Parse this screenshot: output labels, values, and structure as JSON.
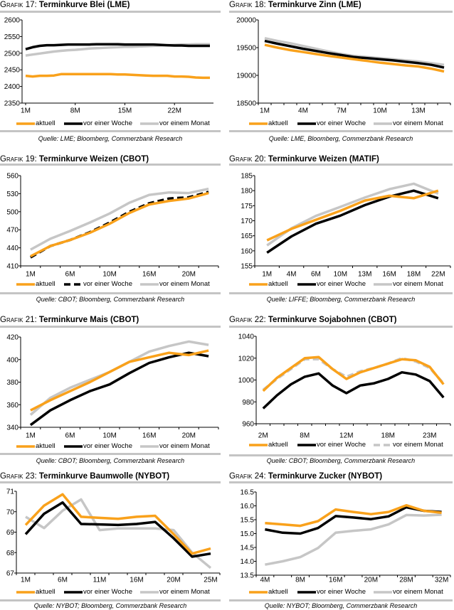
{
  "colors": {
    "aktuell": "#f9a11b",
    "woche": "#000000",
    "monat": "#c6c6c6",
    "rule": "#c4c4c4"
  },
  "chart_data": [
    {
      "type": "line",
      "label": "Grafik 17:",
      "title": "Terminkurve Blei (LME)",
      "source": "Quelle: LME; Bloomberg, Commerzbank Research",
      "ylim": [
        2350,
        2600
      ],
      "yticks": [
        "2350",
        "2400",
        "2450",
        "2500",
        "2550",
        "2600"
      ],
      "xticks": [
        {
          "label": "1M",
          "at": 0
        },
        {
          "label": "8M",
          "at": 7
        },
        {
          "label": "15M",
          "at": 14
        },
        {
          "label": "22M",
          "at": 21
        }
      ],
      "grid": false,
      "legend": "bottom",
      "series": [
        {
          "name": "aktuell",
          "color": "#f9a11b",
          "dash": false,
          "values": [
            2432,
            2430,
            2432,
            2432,
            2433,
            2437,
            2437,
            2437,
            2437,
            2437,
            2437,
            2437,
            2437,
            2436,
            2436,
            2435,
            2434,
            2433,
            2432,
            2432,
            2432,
            2430,
            2430,
            2429,
            2427,
            2426,
            2426
          ]
        },
        {
          "name": "vor einer Woche",
          "color": "#000000",
          "dash": false,
          "values": [
            2512,
            2518,
            2522,
            2524,
            2524,
            2525,
            2526,
            2526,
            2526,
            2526,
            2527,
            2527,
            2527,
            2527,
            2526,
            2526,
            2526,
            2526,
            2526,
            2525,
            2524,
            2523,
            2523,
            2522,
            2522,
            2522,
            2522
          ]
        },
        {
          "name": "vor einem Monat",
          "color": "#c6c6c6",
          "dash": false,
          "values": [
            2493,
            2496,
            2499,
            2502,
            2505,
            2507,
            2509,
            2510,
            2512,
            2514,
            2515,
            2516,
            2517,
            2518,
            2519,
            2519,
            2520,
            2521,
            2522,
            2523,
            2524,
            2525,
            2526,
            2526,
            2527,
            2527,
            2527
          ]
        }
      ]
    },
    {
      "type": "line",
      "label": "Grafik 18:",
      "title": "Terminkurve Zinn (LME)",
      "source": "Quelle: LME, Bloomberg, Commerzbank Research",
      "ylim": [
        18500,
        20000
      ],
      "yticks": [
        "18500",
        "19000",
        "19500",
        "20000"
      ],
      "xticks": [
        {
          "label": "1M",
          "at": 0
        },
        {
          "label": "4M",
          "at": 3
        },
        {
          "label": "7M",
          "at": 6
        },
        {
          "label": "10M",
          "at": 9
        },
        {
          "label": "13M",
          "at": 12
        }
      ],
      "grid": false,
      "legend": "bottom",
      "series": [
        {
          "name": "aktuell",
          "color": "#f9a11b",
          "dash": false,
          "values": [
            19550,
            19500,
            19455,
            19420,
            19385,
            19350,
            19320,
            19290,
            19260,
            19230,
            19205,
            19180,
            19160,
            19120,
            19070
          ]
        },
        {
          "name": "vor einer Woche",
          "color": "#000000",
          "dash": false,
          "values": [
            19620,
            19570,
            19525,
            19480,
            19440,
            19400,
            19365,
            19330,
            19310,
            19290,
            19270,
            19245,
            19220,
            19190,
            19140
          ]
        },
        {
          "name": "vor einem Monat",
          "color": "#c6c6c6",
          "dash": false,
          "values": [
            19670,
            19620,
            19580,
            19530,
            19480,
            19430,
            19385,
            19350,
            19330,
            19310,
            19290,
            19270,
            19250,
            19220,
            19190
          ]
        }
      ]
    },
    {
      "type": "line",
      "label": "Grafik 19:",
      "title": "Terminkurve Weizen (CBOT)",
      "source": "Quelle: CBOT; Bloomberg, Commerzbank Research",
      "ylim": [
        410,
        560
      ],
      "yticks": [
        "410",
        "440",
        "470",
        "500",
        "530",
        "560"
      ],
      "xticks": [
        {
          "label": "1M",
          "at": 0
        },
        {
          "label": "6M",
          "at": 2
        },
        {
          "label": "10M",
          "at": 4
        },
        {
          "label": "16M",
          "at": 6
        },
        {
          "label": "20M",
          "at": 8
        }
      ],
      "grid": false,
      "legend": "bottom",
      "series": [
        {
          "name": "aktuell",
          "color": "#f9a11b",
          "dash": false,
          "values": [
            426,
            443,
            453,
            465,
            480,
            498,
            512,
            518,
            522,
            531
          ]
        },
        {
          "name": "vor einer Woche",
          "color": "#000000",
          "dash": true,
          "values": [
            424,
            443,
            453,
            466,
            482,
            500,
            514,
            522,
            524,
            533
          ]
        },
        {
          "name": "vor einem Monat",
          "color": "#c6c6c6",
          "dash": false,
          "values": [
            437,
            455,
            468,
            482,
            497,
            515,
            528,
            532,
            531,
            538
          ]
        }
      ]
    },
    {
      "type": "line",
      "label": "Grafik 20:",
      "title": "Terminkurve Weizen (MATIF)",
      "source": "Quelle: LIFFE; Bloomberg, Commerzbank Research",
      "ylim": [
        155,
        185
      ],
      "yticks": [
        "155",
        "160",
        "165",
        "170",
        "175",
        "180",
        "185"
      ],
      "xticks": [
        {
          "label": "1M",
          "at": 0
        },
        {
          "label": "4M",
          "at": 1
        },
        {
          "label": "6M",
          "at": 2
        },
        {
          "label": "10M",
          "at": 3
        },
        {
          "label": "13M",
          "at": 4
        },
        {
          "label": "16M",
          "at": 5
        },
        {
          "label": "18M",
          "at": 6
        },
        {
          "label": "22M",
          "at": 7
        }
      ],
      "grid": false,
      "legend": "bottom",
      "series": [
        {
          "name": "aktuell",
          "color": "#f9a11b",
          "dash": false,
          "values": [
            163.5,
            167.3,
            170.3,
            173.3,
            176.7,
            178.3,
            177.5,
            180
          ]
        },
        {
          "name": "vor einer Woche",
          "color": "#000000",
          "dash": false,
          "values": [
            159.4,
            164.8,
            169,
            171.7,
            175.2,
            178,
            180,
            177.5
          ]
        },
        {
          "name": "vor einem Monat",
          "color": "#c6c6c6",
          "dash": false,
          "values": [
            161.8,
            167.5,
            171.6,
            174.6,
            177.7,
            180.5,
            182.3,
            179
          ]
        }
      ]
    },
    {
      "type": "line",
      "label": "Grafik 21:",
      "title": "Terminkurve Mais (CBOT)",
      "source": "Quelle: CBOT; Bloomberg, Commerzbank Research",
      "ylim": [
        340,
        420
      ],
      "yticks": [
        "340",
        "360",
        "380",
        "400",
        "420"
      ],
      "xticks": [
        {
          "label": "1M",
          "at": 0
        },
        {
          "label": "6M",
          "at": 2
        },
        {
          "label": "10M",
          "at": 4
        },
        {
          "label": "16M",
          "at": 6
        },
        {
          "label": "20M",
          "at": 8
        }
      ],
      "grid": false,
      "legend": "bottom",
      "series": [
        {
          "name": "aktuell",
          "color": "#f9a11b",
          "dash": false,
          "values": [
            355,
            364,
            372,
            380,
            389,
            398,
            402,
            406,
            404,
            408
          ]
        },
        {
          "name": "vor einer Woche",
          "color": "#000000",
          "dash": false,
          "values": [
            342,
            355,
            364,
            372,
            378,
            388,
            397,
            402,
            406,
            403
          ]
        },
        {
          "name": "vor einem Monat",
          "color": "#c6c6c6",
          "dash": false,
          "values": [
            351,
            366,
            375,
            382,
            389,
            398,
            407,
            412,
            416,
            413
          ]
        }
      ]
    },
    {
      "type": "line",
      "label": "Grafik 22:",
      "title": "Terminkurve Sojabohnen (CBOT)",
      "source": "Quelle: CBOT; Bloomberg, Commerzbank Research",
      "ylim": [
        960,
        1040
      ],
      "yticks": [
        "960",
        "980",
        "1000",
        "1020",
        "1040"
      ],
      "xticks": [
        {
          "label": "2M",
          "at": 0
        },
        {
          "label": "8M",
          "at": 3
        },
        {
          "label": "12M",
          "at": 6
        },
        {
          "label": "18M",
          "at": 9
        },
        {
          "label": "23M",
          "at": 12
        }
      ],
      "grid": false,
      "legend": "bottom",
      "series": [
        {
          "name": "aktuell",
          "color": "#f9a11b",
          "dash": false,
          "values": [
            990,
            1002,
            1011,
            1020,
            1021,
            1010,
            1001,
            1007,
            1011,
            1015,
            1019,
            1018,
            1012,
            996
          ]
        },
        {
          "name": "vor einer Woche",
          "color": "#000000",
          "dash": false,
          "values": [
            974,
            986,
            996,
            1003,
            1006,
            995,
            988,
            995,
            997,
            1001,
            1007,
            1005,
            999,
            984
          ]
        },
        {
          "name": "vor einem Monat",
          "color": "#c6c6c6",
          "dash": true,
          "values": [
            991,
            1001,
            1010,
            1019,
            1019,
            1010,
            1003,
            1008,
            1011,
            1015,
            1020,
            1017,
            1011,
            997
          ]
        }
      ]
    },
    {
      "type": "line",
      "label": "Grafik 23:",
      "title": "Terminkurve Baumwolle (NYBOT)",
      "source": "Quelle: NYBOT; Bloomberg, Commerzbank Research",
      "ylim": [
        67,
        71
      ],
      "yticks": [
        "67",
        "68",
        "69",
        "70",
        "71"
      ],
      "xticks": [
        {
          "label": "1M",
          "at": 0
        },
        {
          "label": "6M",
          "at": 2
        },
        {
          "label": "11M",
          "at": 4
        },
        {
          "label": "16M",
          "at": 6
        },
        {
          "label": "20M",
          "at": 8
        },
        {
          "label": "25M",
          "at": 10
        }
      ],
      "grid": false,
      "legend": "bottom",
      "series": [
        {
          "name": "aktuell",
          "color": "#f9a11b",
          "dash": false,
          "values": [
            69.35,
            70.3,
            70.85,
            69.75,
            69.7,
            69.65,
            69.75,
            69.8,
            68.9,
            67.95,
            68.2
          ]
        },
        {
          "name": "vor einer Woche",
          "color": "#000000",
          "dash": false,
          "values": [
            68.9,
            69.9,
            70.45,
            69.4,
            69.38,
            69.35,
            69.4,
            69.5,
            68.7,
            67.8,
            67.95
          ]
        },
        {
          "name": "vor einem Monat",
          "color": "#c6c6c6",
          "dash": false,
          "values": [
            69.75,
            69.2,
            70.05,
            70.6,
            69.1,
            69.18,
            69.18,
            69.18,
            69.1,
            68.0,
            67.25
          ]
        }
      ]
    },
    {
      "type": "line",
      "label": "Grafik 24:",
      "title": "Terminkurve Zucker (NYBOT)",
      "source": "Quelle: NYBOT; Bloomberg, Commerzbank Research",
      "ylim": [
        13.5,
        16.5
      ],
      "yticks": [
        "13.5",
        "14.0",
        "14.5",
        "15.0",
        "15.5",
        "16.0",
        "16.5"
      ],
      "xticks": [
        {
          "label": "4M",
          "at": 0
        },
        {
          "label": "8M",
          "at": 2
        },
        {
          "label": "16M",
          "at": 4
        },
        {
          "label": "20M",
          "at": 6
        },
        {
          "label": "28M",
          "at": 8
        },
        {
          "label": "32M",
          "at": 10
        }
      ],
      "grid": false,
      "legend": "bottom",
      "series": [
        {
          "name": "aktuell",
          "color": "#f9a11b",
          "dash": false,
          "values": [
            15.38,
            15.33,
            15.28,
            15.45,
            15.87,
            15.78,
            15.7,
            15.78,
            16.02,
            15.82,
            15.75
          ]
        },
        {
          "name": "vor einer Woche",
          "color": "#000000",
          "dash": false,
          "values": [
            15.15,
            15.03,
            15.0,
            15.2,
            15.63,
            15.58,
            15.52,
            15.62,
            15.95,
            15.82,
            15.78
          ]
        },
        {
          "name": "vor einem Monat",
          "color": "#c6c6c6",
          "dash": false,
          "values": [
            13.88,
            14.0,
            14.15,
            14.48,
            15.03,
            15.1,
            15.15,
            15.33,
            15.67,
            15.65,
            15.68
          ]
        }
      ]
    }
  ]
}
